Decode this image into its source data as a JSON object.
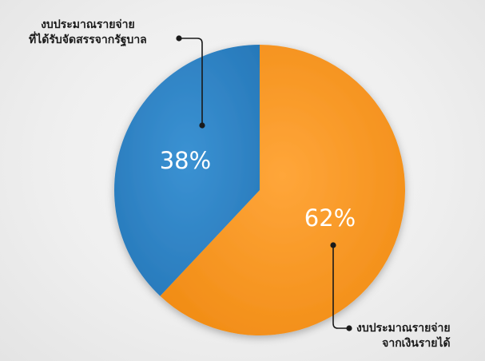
{
  "chart_data": {
    "type": "pie",
    "slices": [
      {
        "label_lines": [
          "งบประมาณรายจ่าย",
          "จากเงินรายได้"
        ],
        "value": 62,
        "display": "62%",
        "color": "#f7931e"
      },
      {
        "label_lines": [
          "งบประมาณรายจ่าย",
          "ที่ได้รับจัดสรรจากรัฐบาล"
        ],
        "value": 38,
        "display": "38%",
        "color": "#2f86c8"
      }
    ],
    "start": "top",
    "direction": "clockwise",
    "legend": "callouts"
  }
}
